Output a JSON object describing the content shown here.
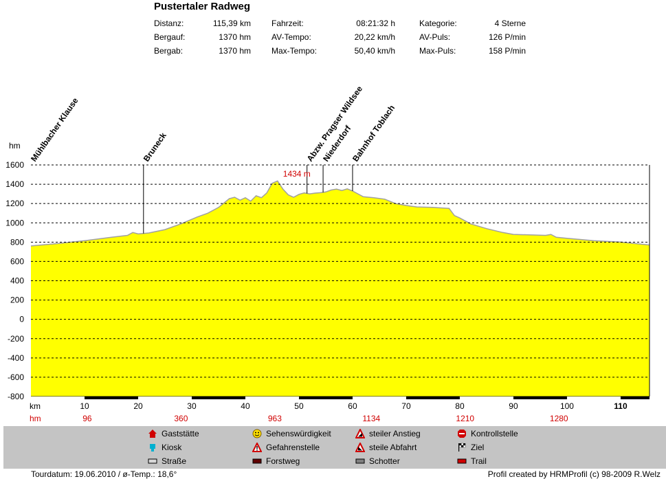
{
  "header": {
    "title": "Pustertaler Radweg",
    "stats": [
      {
        "label": "Distanz:",
        "value": "115,39 km"
      },
      {
        "label": "Bergauf:",
        "value": "1370 hm"
      },
      {
        "label": "Bergab:",
        "value": "1370 hm"
      },
      {
        "label": "Fahrzeit:",
        "value": "08:21:32 h"
      },
      {
        "label": "AV-Tempo:",
        "value": "20,22 km/h"
      },
      {
        "label": "Max-Tempo:",
        "value": "50,40 km/h"
      },
      {
        "label": "Kategorie:",
        "value": "4 Sterne"
      },
      {
        "label": "AV-Puls:",
        "value": "126 P/min"
      },
      {
        "label": "Max-Puls:",
        "value": "158 P/min"
      }
    ]
  },
  "chart_data": {
    "type": "area",
    "ylabel": "hm",
    "xlabel": "km",
    "ylim": [
      -800,
      1600
    ],
    "xlim": [
      0,
      115.39
    ],
    "grid": true,
    "yticks": [
      1600,
      1400,
      1200,
      1000,
      800,
      600,
      400,
      200,
      0,
      -200,
      -400,
      -600,
      -800
    ],
    "xticks": [
      10,
      20,
      30,
      40,
      50,
      60,
      70,
      80,
      90,
      100,
      110
    ],
    "x": [
      0,
      5,
      10,
      15,
      18,
      19,
      20,
      22,
      25,
      28,
      31,
      33,
      35,
      37,
      38,
      39,
      40,
      41,
      42,
      43,
      44,
      45,
      46,
      47,
      48,
      49,
      50,
      51,
      52,
      53,
      54,
      55,
      56,
      57,
      58,
      59,
      60,
      61,
      62,
      64,
      66,
      68,
      70,
      72,
      75,
      78,
      79,
      80,
      82,
      85,
      88,
      90,
      93,
      96,
      97,
      98,
      100,
      105,
      110,
      115.39
    ],
    "y": [
      760,
      785,
      815,
      850,
      870,
      900,
      885,
      895,
      930,
      990,
      1060,
      1100,
      1160,
      1250,
      1265,
      1235,
      1260,
      1225,
      1280,
      1260,
      1310,
      1410,
      1434,
      1350,
      1290,
      1265,
      1295,
      1310,
      1300,
      1308,
      1312,
      1320,
      1340,
      1350,
      1335,
      1352,
      1330,
      1300,
      1270,
      1260,
      1245,
      1200,
      1180,
      1165,
      1160,
      1150,
      1075,
      1050,
      990,
      940,
      900,
      880,
      875,
      870,
      880,
      850,
      840,
      815,
      800,
      770
    ],
    "annotations": [
      {
        "label": "Mühlbacher Klause",
        "x": 0
      },
      {
        "label": "Bruneck",
        "x": 21
      },
      {
        "label": "Abzw. Pragser Wildsee",
        "x": 51.5
      },
      {
        "label": "Niederdorf",
        "x": 54.5
      },
      {
        "label": "Bahnhof Toblach",
        "x": 60
      }
    ],
    "max_label": "1434 m",
    "hm_row": [
      {
        "x": 10.5,
        "label": "96"
      },
      {
        "x": 28,
        "label": "360"
      },
      {
        "x": 45.5,
        "label": "963"
      },
      {
        "x": 63.5,
        "label": "1134"
      },
      {
        "x": 81,
        "label": "1210"
      },
      {
        "x": 98.5,
        "label": "1280"
      }
    ],
    "bold_xtick": 110,
    "fill_color": "#ffff00",
    "line_color": "#a0a0a0"
  },
  "legend": [
    {
      "icon": "restaurant-icon",
      "label": "Gaststätte"
    },
    {
      "icon": "kiosk-icon",
      "label": "Kiosk"
    },
    {
      "icon": "road-icon",
      "label": "Straße"
    },
    {
      "icon": "sight-icon",
      "label": "Sehenswürdigkeit"
    },
    {
      "icon": "danger-icon",
      "label": "Gefahrenstelle"
    },
    {
      "icon": "forest-road-icon",
      "label": "Forstweg"
    },
    {
      "icon": "steep-climb-icon",
      "label": "steiler Anstieg"
    },
    {
      "icon": "steep-descent-icon",
      "label": "steile Abfahrt"
    },
    {
      "icon": "gravel-icon",
      "label": "Schotter"
    },
    {
      "icon": "stop-icon",
      "label": "Kontrollstelle"
    },
    {
      "icon": "finish-flag-icon",
      "label": "Ziel"
    },
    {
      "icon": "trail-icon",
      "label": "Trail"
    }
  ],
  "footer": {
    "left": "Tourdatum: 19.06.2010  /  ø-Temp.: 18,6°",
    "right": "Profil created by HRMProfil (c) 98-2009 R.Welz"
  }
}
